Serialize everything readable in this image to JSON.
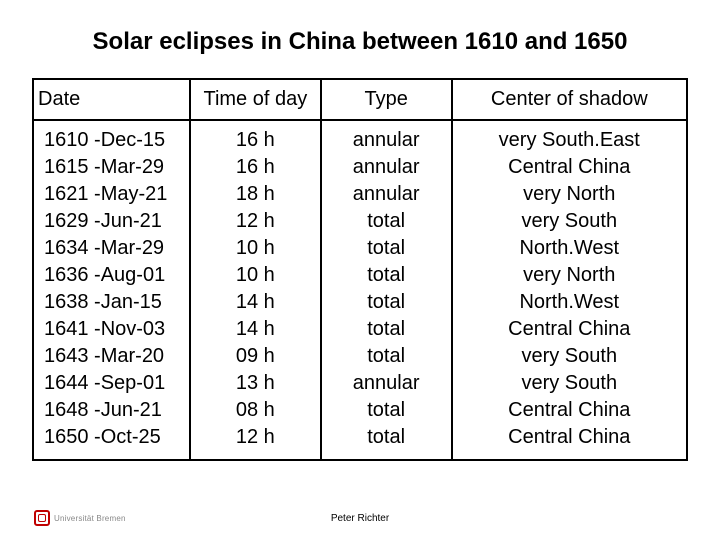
{
  "title": "Solar eclipses in China between 1610 and 1650",
  "columns": [
    "Date",
    "Time of day",
    "Type",
    "Center of shadow"
  ],
  "rows": [
    [
      "1610 -Dec-15",
      "16 h",
      "annular",
      "very South.East"
    ],
    [
      "1615 -Mar-29",
      "16 h",
      "annular",
      "Central China"
    ],
    [
      "1621 -May-21",
      "18 h",
      "annular",
      "very North"
    ],
    [
      "1629 -Jun-21",
      "12 h",
      "total",
      "very South"
    ],
    [
      "1634 -Mar-29",
      "10 h",
      "total",
      "North.West"
    ],
    [
      "1636 -Aug-01",
      "10 h",
      "total",
      "very North"
    ],
    [
      "1638 -Jan-15",
      "14 h",
      "total",
      "North.West"
    ],
    [
      "1641 -Nov-03",
      "14 h",
      "total",
      "Central China"
    ],
    [
      "1643 -Mar-20",
      "09 h",
      "total",
      "very South"
    ],
    [
      "1644 -Sep-01",
      "13 h",
      "annular",
      "very South"
    ],
    [
      "1648 -Jun-21",
      "08 h",
      "total",
      "Central China"
    ],
    [
      "1650 -Oct-25",
      "12 h",
      "total",
      "Central China"
    ]
  ],
  "footer": {
    "institution": "Universität Bremen",
    "author": "Peter Richter"
  },
  "styling": {
    "background_color": "#ffffff",
    "text_color": "#000000",
    "border_color": "#000000",
    "logo_color": "#c00000",
    "title_fontsize": 24,
    "cell_fontsize": 20,
    "footer_fontsize": 10,
    "column_widths_pct": [
      24,
      20,
      20,
      36
    ],
    "column_align": [
      "left",
      "center",
      "center",
      "center"
    ]
  }
}
